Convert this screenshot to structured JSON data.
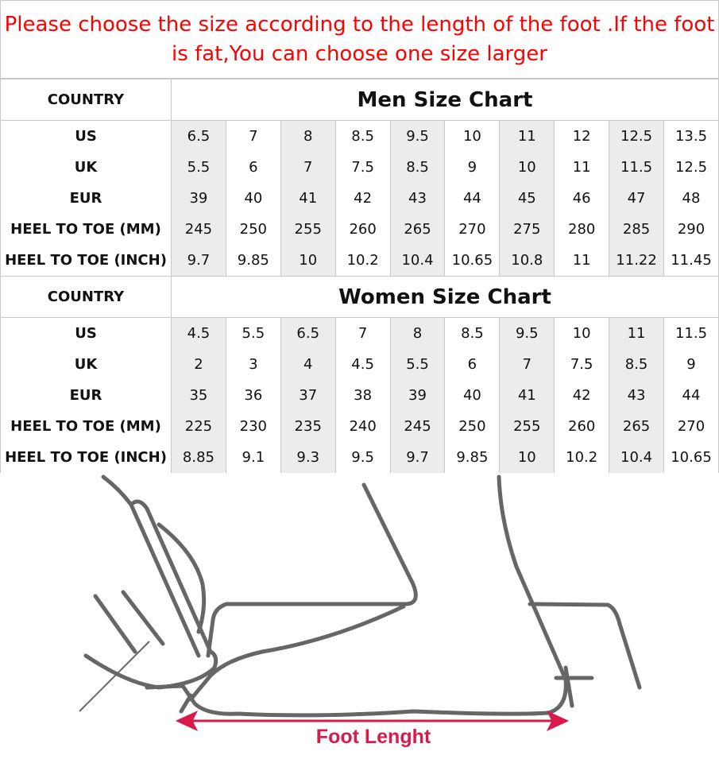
{
  "notice": "Please choose the size according to the length of the foot .If the foot is fat,You can choose one size larger",
  "colors": {
    "notice_text": "#ff0000",
    "shaded_column": "#ececec",
    "arrow": "#d81b4a",
    "illustration_line": "#666666"
  },
  "men": {
    "country_label": "COUNTRY",
    "title": "Men Size Chart",
    "rows": [
      {
        "label": "US",
        "values": [
          "6.5",
          "7",
          "8",
          "8.5",
          "9.5",
          "10",
          "11",
          "12",
          "12.5",
          "13.5"
        ]
      },
      {
        "label": "UK",
        "values": [
          "5.5",
          "6",
          "7",
          "7.5",
          "8.5",
          "9",
          "10",
          "11",
          "11.5",
          "12.5"
        ]
      },
      {
        "label": "EUR",
        "values": [
          "39",
          "40",
          "41",
          "42",
          "43",
          "44",
          "45",
          "46",
          "47",
          "48"
        ]
      },
      {
        "label": "HEEL TO TOE (MM)",
        "values": [
          "245",
          "250",
          "255",
          "260",
          "265",
          "270",
          "275",
          "280",
          "285",
          "290"
        ]
      },
      {
        "label": "HEEL TO TOE (INCH)",
        "values": [
          "9.7",
          "9.85",
          "10",
          "10.2",
          "10.4",
          "10.65",
          "10.8",
          "11",
          "11.22",
          "11.45"
        ]
      }
    ]
  },
  "women": {
    "country_label": "COUNTRY",
    "title": "Women Size Chart",
    "rows": [
      {
        "label": "US",
        "values": [
          "4.5",
          "5.5",
          "6.5",
          "7",
          "8",
          "8.5",
          "9.5",
          "10",
          "11",
          "11.5"
        ]
      },
      {
        "label": "UK",
        "values": [
          "2",
          "3",
          "4",
          "4.5",
          "5.5",
          "6",
          "7",
          "7.5",
          "8.5",
          "9"
        ]
      },
      {
        "label": "EUR",
        "values": [
          "35",
          "36",
          "37",
          "38",
          "39",
          "40",
          "41",
          "42",
          "43",
          "44"
        ]
      },
      {
        "label": "HEEL TO TOE (MM)",
        "values": [
          "225",
          "230",
          "235",
          "240",
          "245",
          "250",
          "255",
          "260",
          "265",
          "270"
        ]
      },
      {
        "label": "HEEL TO TOE (INCH)",
        "values": [
          "8.85",
          "9.1",
          "9.3",
          "9.5",
          "9.7",
          "9.85",
          "10",
          "10.2",
          "10.4",
          "10.65"
        ]
      }
    ]
  },
  "illustration": {
    "caption": "Foot Lenght"
  }
}
